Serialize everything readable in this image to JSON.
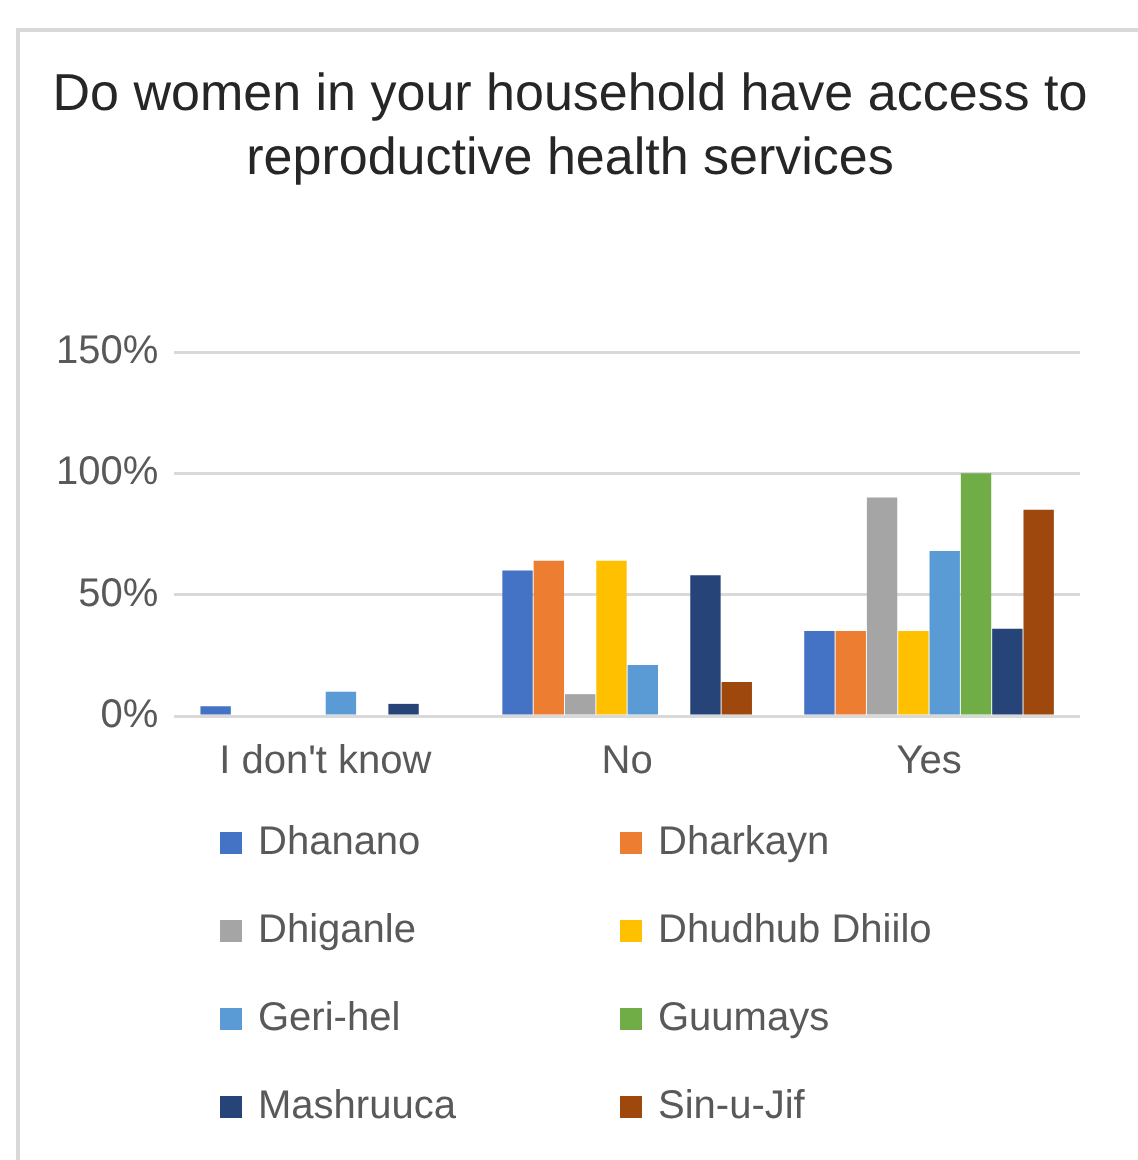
{
  "chart_data": {
    "type": "bar",
    "title": "Do women in your household have access to reproductive health services",
    "categories": [
      "I don't know",
      "No",
      "Yes"
    ],
    "series": [
      {
        "name": "Dhanano",
        "color": "#4472c4",
        "values": [
          4,
          60,
          35
        ]
      },
      {
        "name": "Dharkayn",
        "color": "#ed7d31",
        "values": [
          0,
          64,
          35
        ]
      },
      {
        "name": "Dhiganle",
        "color": "#a5a5a5",
        "values": [
          0,
          9,
          90
        ]
      },
      {
        "name": "Dhudhub Dhiilo",
        "color": "#ffc000",
        "values": [
          0,
          64,
          35
        ]
      },
      {
        "name": "Geri-hel",
        "color": "#5b9bd5",
        "values": [
          10,
          21,
          68
        ]
      },
      {
        "name": "Guumays",
        "color": "#70ad47",
        "values": [
          0,
          0,
          100
        ]
      },
      {
        "name": "Mashruuca",
        "color": "#264478",
        "values": [
          5,
          58,
          36
        ]
      },
      {
        "name": "Sin-u-Jif",
        "color": "#9e480e",
        "values": [
          0,
          14,
          85
        ]
      }
    ],
    "ylim": [
      0,
      150
    ],
    "yticks": [
      {
        "value": 0,
        "label": "0%"
      },
      {
        "value": 50,
        "label": "50%"
      },
      {
        "value": 100,
        "label": "100%"
      },
      {
        "value": 150,
        "label": "150%"
      }
    ],
    "grid": "y",
    "legend": "bottom"
  }
}
